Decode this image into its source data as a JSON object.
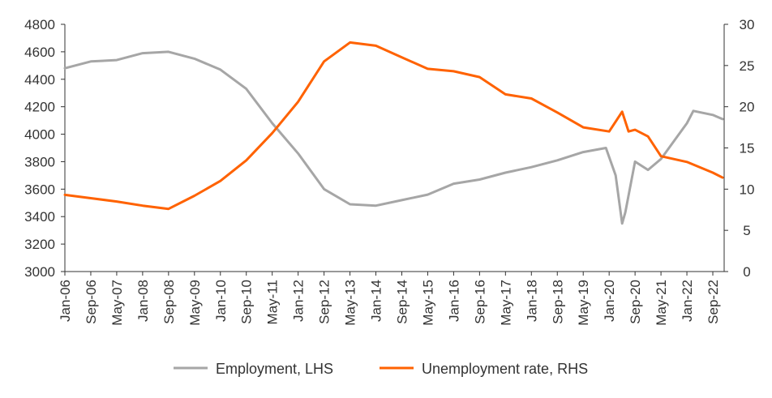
{
  "chart_data": {
    "type": "line",
    "title": "",
    "xlabel": "",
    "ylabel_left": "",
    "ylabel_right": "",
    "grid": false,
    "legend_position": "bottom",
    "x_start": "Jan-06",
    "x_step": "month",
    "x_ticks": [
      "Jan-06",
      "Sep-06",
      "May-07",
      "Jan-08",
      "Sep-08",
      "May-09",
      "Jan-10",
      "Sep-10",
      "May-11",
      "Jan-12",
      "Sep-12",
      "May-13",
      "Jan-14",
      "Sep-14",
      "May-15",
      "Jan-16",
      "Sep-16",
      "May-17",
      "Jan-18",
      "Sep-18",
      "May-19",
      "Jan-20",
      "Sep-20",
      "May-21",
      "Jan-22",
      "Sep-22"
    ],
    "y_left": {
      "min": 3000,
      "max": 4800,
      "ticks": [
        "3000",
        "3200",
        "3400",
        "3600",
        "3800",
        "4000",
        "4200",
        "4400",
        "4600",
        "4800"
      ]
    },
    "y_right": {
      "min": 0,
      "max": 30,
      "ticks": [
        "0",
        "5",
        "10",
        "15",
        "20",
        "25",
        "30"
      ]
    },
    "series": [
      {
        "name": "Employment, LHS",
        "axis": "left",
        "color": "#a6a6a6",
        "x": [
          "Jan-06",
          "Sep-06",
          "May-07",
          "Jan-08",
          "Sep-08",
          "May-09",
          "Jan-10",
          "Sep-10",
          "May-11",
          "Jan-12",
          "Sep-12",
          "May-13",
          "Jan-14",
          "Sep-14",
          "May-15",
          "Jan-16",
          "Sep-16",
          "May-17",
          "Jan-18",
          "Sep-18",
          "May-19",
          "Dec-19",
          "Mar-20",
          "May-20",
          "Jun-20",
          "Sep-20",
          "Jan-21",
          "May-21",
          "Jan-22",
          "Mar-22",
          "Sep-22",
          "Dec-22"
        ],
        "values": [
          4480,
          4530,
          4540,
          4590,
          4600,
          4550,
          4470,
          4330,
          4080,
          3860,
          3600,
          3490,
          3480,
          3520,
          3560,
          3640,
          3670,
          3720,
          3760,
          3810,
          3870,
          3900,
          3700,
          3350,
          3430,
          3800,
          3740,
          3820,
          4080,
          4170,
          4140,
          4110
        ]
      },
      {
        "name": "Unemployment rate, RHS",
        "axis": "right",
        "color": "#ff6200",
        "x": [
          "Jan-06",
          "Sep-06",
          "May-07",
          "Jan-08",
          "Sep-08",
          "May-09",
          "Jan-10",
          "Sep-10",
          "May-11",
          "Jan-12",
          "Sep-12",
          "May-13",
          "Jan-14",
          "Sep-14",
          "May-15",
          "Jan-16",
          "Sep-16",
          "May-17",
          "Jan-18",
          "Sep-18",
          "May-19",
          "Jan-20",
          "May-20",
          "Jul-20",
          "Sep-20",
          "Jan-21",
          "May-21",
          "Jan-22",
          "Sep-22",
          "Dec-22"
        ],
        "values": [
          9.3,
          8.9,
          8.5,
          8.0,
          7.6,
          9.2,
          11.0,
          13.5,
          16.8,
          20.6,
          25.5,
          27.8,
          27.4,
          26.0,
          24.6,
          24.3,
          23.6,
          21.5,
          21.0,
          19.3,
          17.5,
          17.0,
          19.4,
          17.0,
          17.2,
          16.4,
          14.0,
          13.3,
          12.0,
          11.4
        ]
      }
    ]
  }
}
